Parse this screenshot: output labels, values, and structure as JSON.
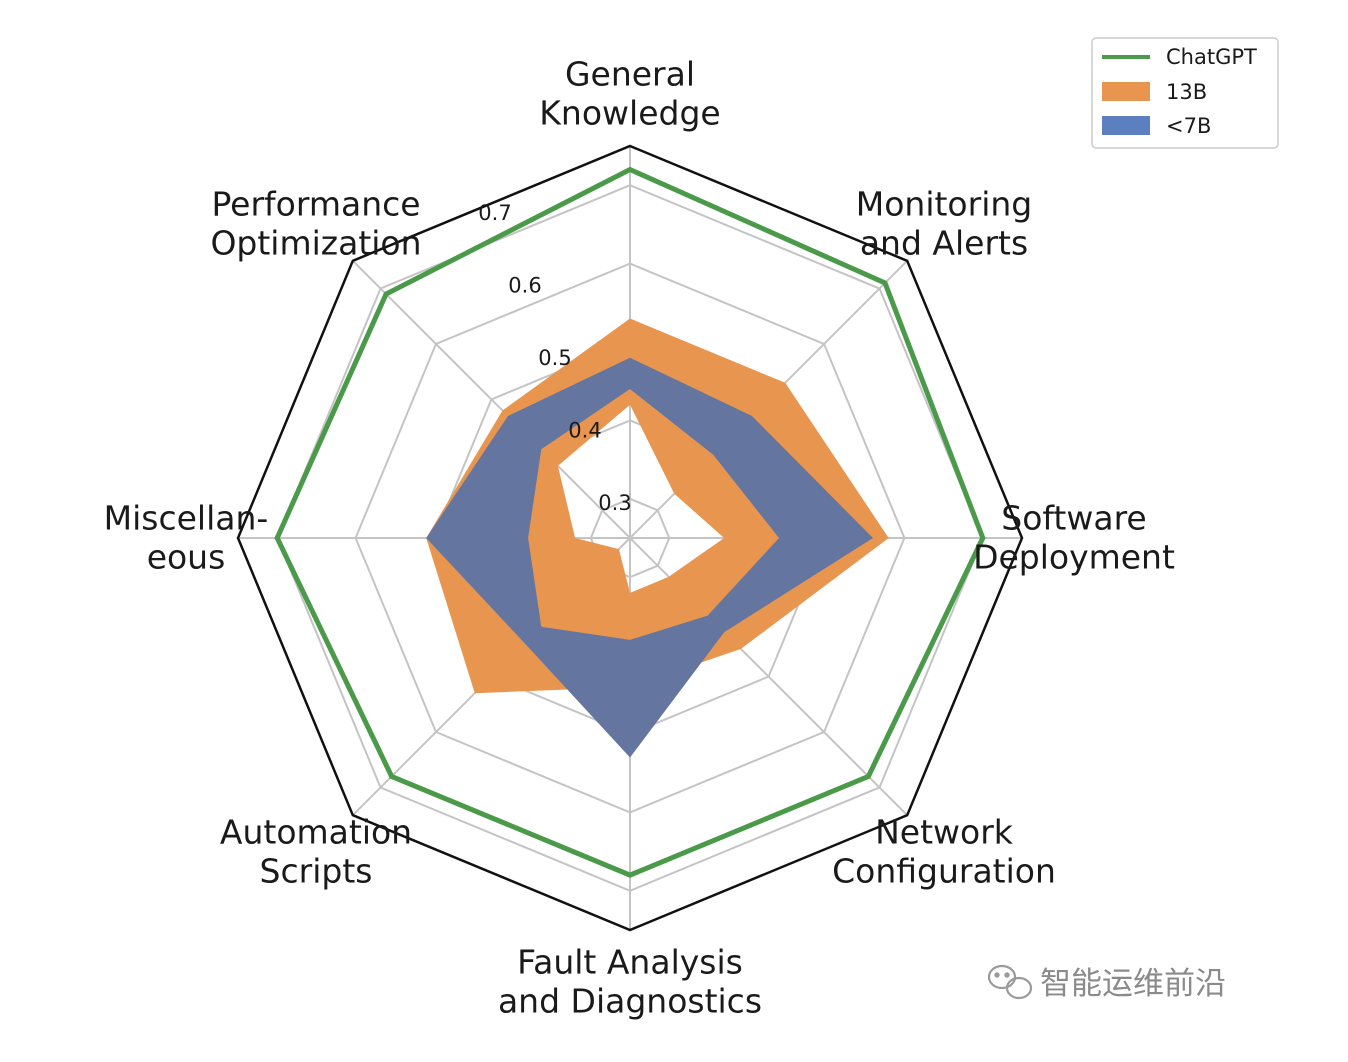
{
  "chart_data": {
    "type": "radar",
    "categories": [
      "General Knowledge",
      "Monitoring and Alerts",
      "Software Deployment",
      "Network Configuration",
      "Fault Analysis and Diagnostics",
      "Automation Scripts",
      "Miscellan-eous",
      "Performance Optimization"
    ],
    "category_lines": [
      [
        "General",
        "Knowledge"
      ],
      [
        "Monitoring",
        "and Alerts"
      ],
      [
        "Software",
        "Deployment"
      ],
      [
        "Network",
        "Configuration"
      ],
      [
        "Fault Analysis",
        "and Diagnostics"
      ],
      [
        "Automation",
        "Scripts"
      ],
      [
        "Miscellan-",
        "eous"
      ],
      [
        "Performance",
        "Optimization"
      ]
    ],
    "rlim": [
      0.25,
      0.75
    ],
    "ticks": [
      0.3,
      0.4,
      0.5,
      0.6,
      0.7
    ],
    "tick_labels": [
      "0.3",
      "0.4",
      "0.5",
      "0.6",
      "0.7"
    ],
    "grid": true,
    "legend_position": "top-right",
    "series": [
      {
        "name": "ChatGPT",
        "style": "line",
        "color": "#4a9a4a",
        "outer": [
          0.72,
          0.71,
          0.7,
          0.68,
          0.68,
          0.68,
          0.7,
          0.69
        ]
      },
      {
        "name": "13B",
        "style": "band",
        "color": "#e8954f",
        "outer": [
          0.53,
          0.53,
          0.58,
          0.45,
          0.44,
          0.53,
          0.51,
          0.48
        ],
        "inner": [
          0.42,
          0.33,
          0.37,
          0.32,
          0.32,
          0.27,
          0.32,
          0.38
        ]
      },
      {
        "name": "<7B",
        "style": "band",
        "color": "#6476a0",
        "legend_color": "#5b7fbf",
        "outer": [
          0.48,
          0.47,
          0.56,
          0.42,
          0.53,
          0.44,
          0.51,
          0.47
        ],
        "inner": [
          0.44,
          0.4,
          0.44,
          0.39,
          0.38,
          0.41,
          0.38,
          0.41
        ]
      }
    ]
  },
  "watermark": {
    "text": "智能运维前沿",
    "icon": "wechat-icon"
  }
}
